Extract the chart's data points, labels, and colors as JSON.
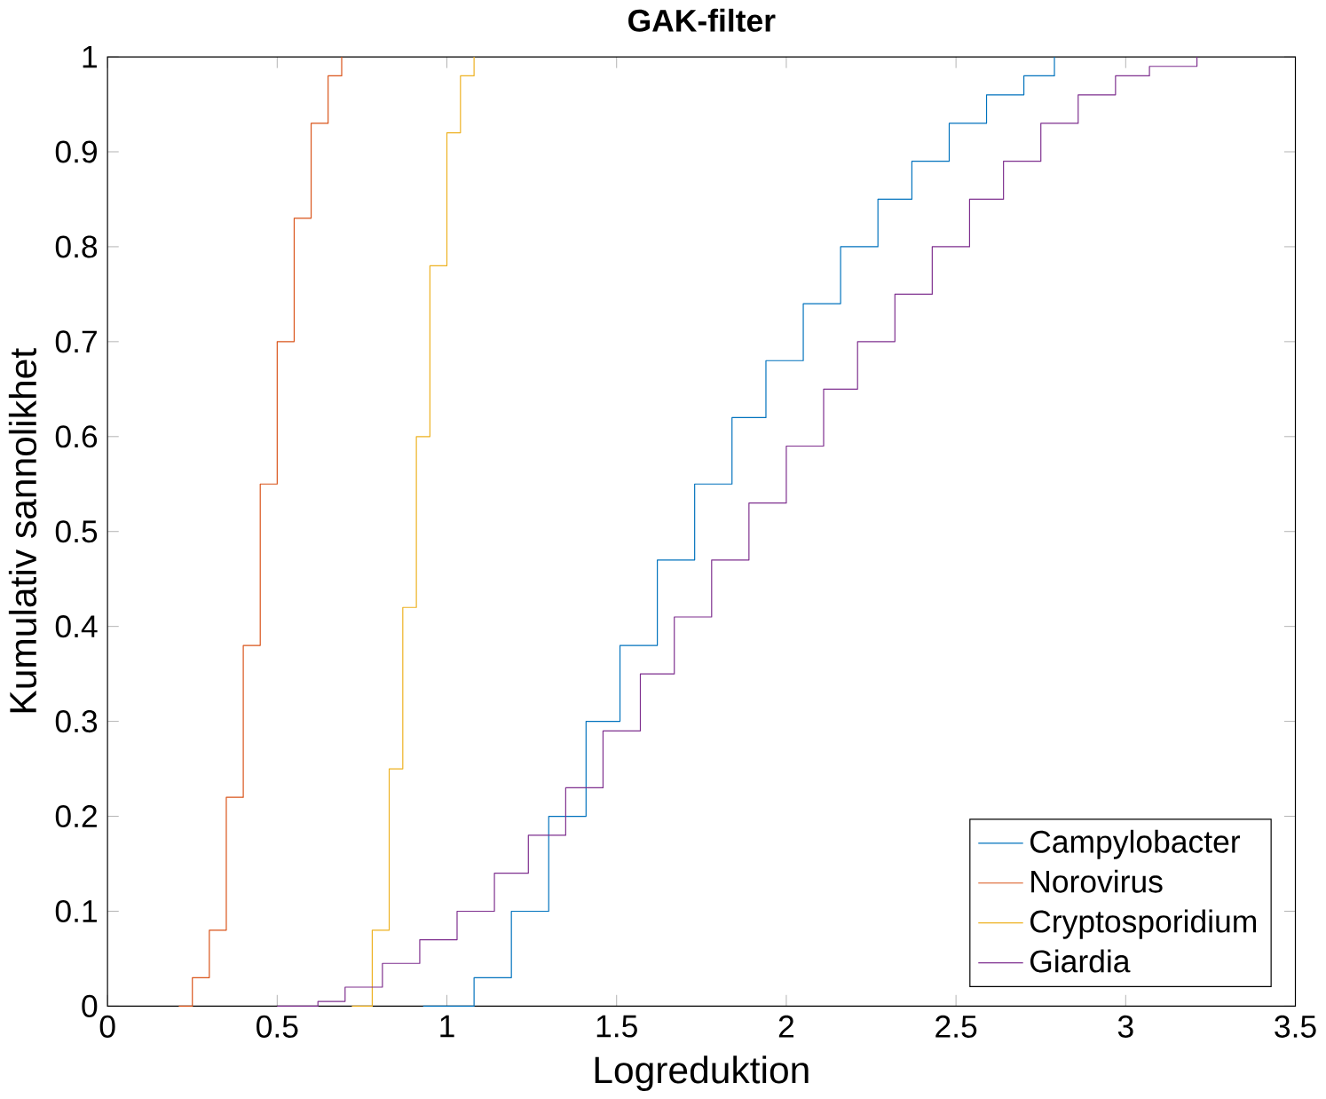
{
  "chart_data": {
    "type": "step",
    "title": "GAK-filter",
    "xlabel": "Logreduktion",
    "ylabel": "Kumulativ sannolikhet",
    "xlim": [
      0,
      3.5
    ],
    "ylim": [
      0,
      1
    ],
    "xticks": [
      0,
      0.5,
      1,
      1.5,
      2,
      2.5,
      3,
      3.5
    ],
    "yticks": [
      0,
      0.1,
      0.2,
      0.3,
      0.4,
      0.5,
      0.6,
      0.7,
      0.8,
      0.9,
      1
    ],
    "grid": false,
    "legend": "bottom right",
    "series": [
      {
        "name": "Campylobacter",
        "color": "#0072bd",
        "x": [
          0.93,
          1.08,
          1.19,
          1.3,
          1.41,
          1.51,
          1.62,
          1.73,
          1.84,
          1.94,
          2.05,
          2.16,
          2.27,
          2.37,
          2.48,
          2.59,
          2.7,
          2.79
        ],
        "values": [
          0,
          0.03,
          0.1,
          0.2,
          0.3,
          0.38,
          0.47,
          0.55,
          0.62,
          0.68,
          0.74,
          0.8,
          0.85,
          0.89,
          0.93,
          0.96,
          0.98,
          1
        ]
      },
      {
        "name": "Norovirus",
        "color": "#d95319",
        "x": [
          0.21,
          0.25,
          0.3,
          0.35,
          0.4,
          0.45,
          0.5,
          0.55,
          0.6,
          0.65,
          0.69
        ],
        "values": [
          0,
          0.03,
          0.08,
          0.22,
          0.38,
          0.55,
          0.7,
          0.83,
          0.93,
          0.98,
          1
        ]
      },
      {
        "name": "Cryptosporidium",
        "color": "#edb120",
        "x": [
          0.72,
          0.78,
          0.83,
          0.87,
          0.91,
          0.95,
          1.0,
          1.04,
          1.08
        ],
        "values": [
          0,
          0.08,
          0.25,
          0.42,
          0.6,
          0.78,
          0.92,
          0.98,
          1
        ]
      },
      {
        "name": "Giardia",
        "color": "#7e2f8e",
        "x": [
          0.5,
          0.62,
          0.7,
          0.81,
          0.92,
          1.03,
          1.14,
          1.24,
          1.35,
          1.46,
          1.57,
          1.67,
          1.78,
          1.89,
          2.0,
          2.11,
          2.21,
          2.32,
          2.43,
          2.54,
          2.64,
          2.75,
          2.86,
          2.97,
          3.07,
          3.21
        ],
        "values": [
          0,
          0.005,
          0.02,
          0.045,
          0.07,
          0.1,
          0.14,
          0.18,
          0.23,
          0.29,
          0.35,
          0.41,
          0.47,
          0.53,
          0.59,
          0.65,
          0.7,
          0.75,
          0.8,
          0.85,
          0.89,
          0.93,
          0.96,
          0.98,
          0.99,
          1
        ]
      }
    ]
  }
}
